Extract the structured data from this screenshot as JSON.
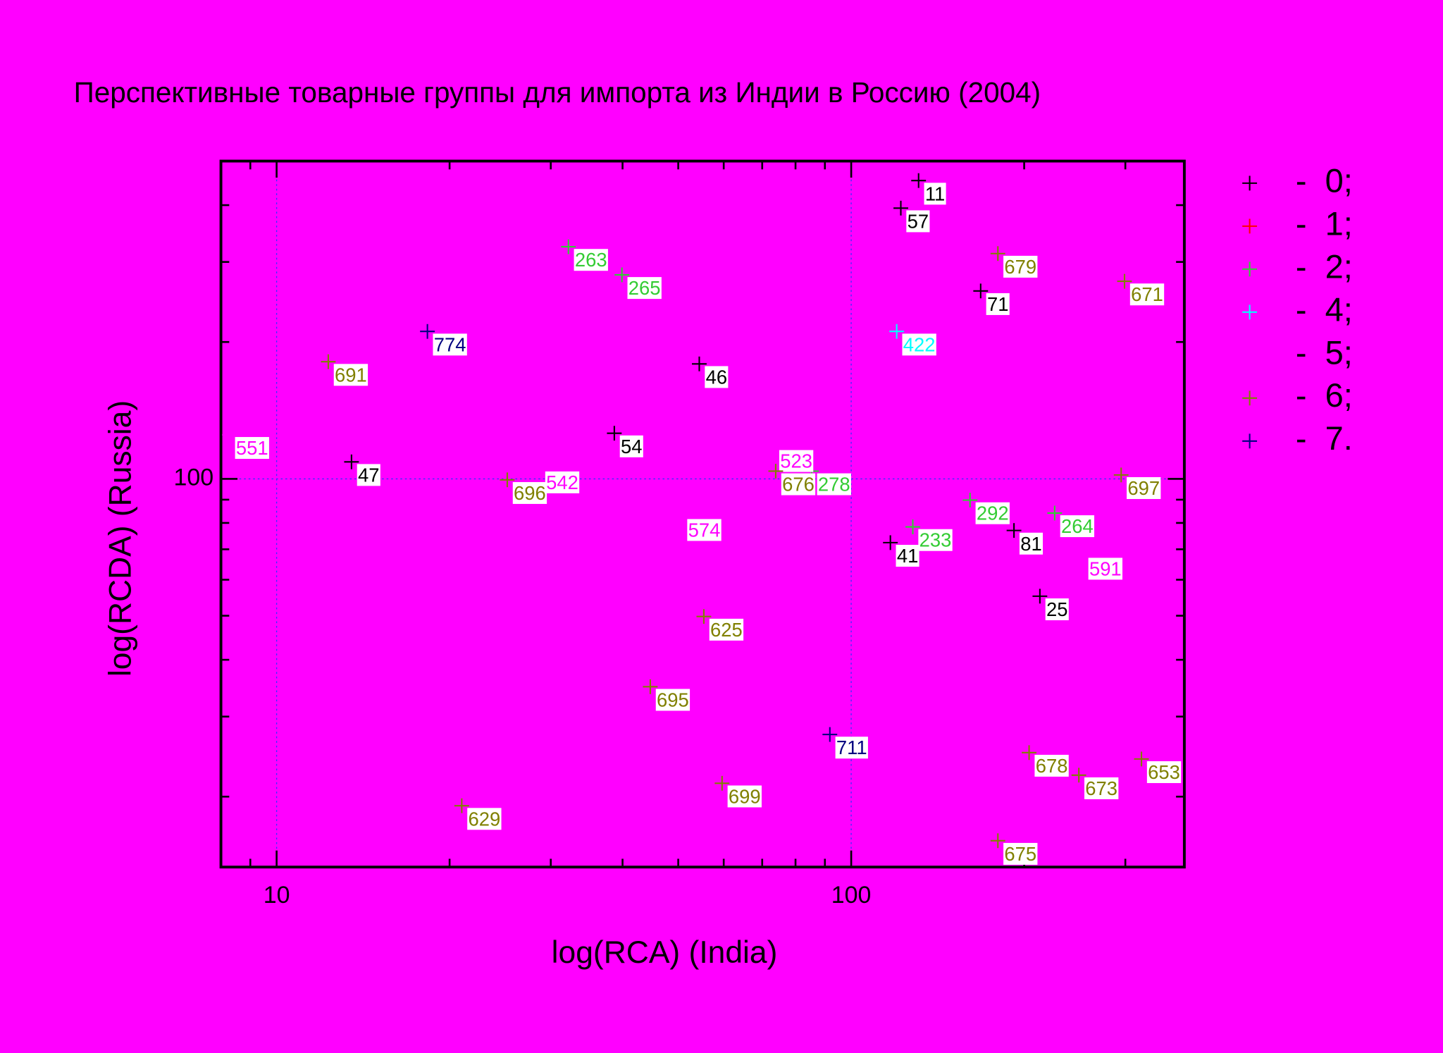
{
  "chart_data": {
    "type": "scatter",
    "title": "Перспективные товарные группы для импорта из Индии в Россию (2004)",
    "x_label": "log(RCA) (India)",
    "y_label": "log(RCDA) (Russia)",
    "xscale": "log",
    "yscale": "log",
    "xlim": [
      8,
      380
    ],
    "ylim": [
      14,
      500
    ],
    "xticks": [
      10,
      100
    ],
    "yticks": [
      100
    ],
    "grid": true,
    "minor_ticks": true,
    "background": "#ff00ff",
    "legend": "right",
    "series": [
      {
        "name": "-  0;",
        "color": "#000000",
        "x": [
          131,
          122,
          168,
          54.4,
          38.7,
          13.5,
          117,
          192,
          213
        ],
        "values": [
          453,
          394,
          259,
          179,
          126,
          109,
          72.4,
          77,
          55.2
        ],
        "labels": [
          "11",
          "57",
          "71",
          "46",
          "54",
          "47",
          "41",
          "81",
          "25"
        ]
      },
      {
        "name": "-  1;",
        "color": "#ff0000",
        "x": [],
        "values": [],
        "labels": []
      },
      {
        "name": "-  2;",
        "color": "#33cc33",
        "x": [
          32.2,
          39.9,
          85.3,
          161,
          226,
          128
        ],
        "values": [
          324,
          281,
          104,
          89.8,
          84.1,
          78.4
        ],
        "labels": [
          "263",
          "265",
          "278",
          "292",
          "264",
          "233"
        ]
      },
      {
        "name": "-  4;",
        "color": "#00ffff",
        "x": [
          120
        ],
        "values": [
          211
        ],
        "labels": [
          "422"
        ]
      },
      {
        "name": "-  5;",
        "color": "#ff00ff",
        "x": [
          8.28,
          28.7,
          73.3,
          50.7,
          253
        ],
        "values": [
          125,
          105,
          117,
          82.5,
          67.8
        ],
        "labels": [
          "551",
          "542",
          "523",
          "574",
          "591"
        ]
      },
      {
        "name": "-  6;",
        "color": "#808000",
        "x": [
          180,
          299,
          12.3,
          25.2,
          73.9,
          295,
          55.4,
          44.7,
          204,
          249,
          320,
          59.6,
          21.0,
          180
        ],
        "values": [
          313,
          272,
          181,
          99.5,
          104,
          102,
          49.8,
          34.9,
          25.0,
          22.3,
          24.2,
          21.4,
          19.1,
          16.0
        ],
        "labels": [
          "679",
          "671",
          "691",
          "696",
          "676",
          "697",
          "625",
          "695",
          "678",
          "673",
          "653",
          "699",
          "629",
          "675"
        ]
      },
      {
        "name": "-  7.",
        "color": "#000080",
        "x": [
          18.3,
          91.8
        ],
        "values": [
          211,
          27.4
        ],
        "labels": [
          "774",
          "711"
        ]
      }
    ]
  }
}
